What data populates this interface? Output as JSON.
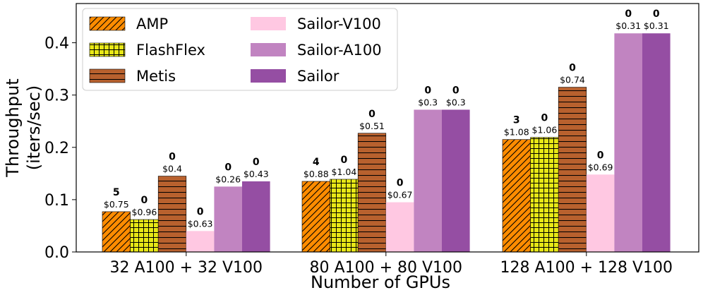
{
  "chart_data": {
    "type": "bar",
    "xlabel": "Number of GPUs",
    "ylabel_lines": [
      "Throughput",
      "(iters/sec)"
    ],
    "ylim": [
      0,
      0.475
    ],
    "yticks": [
      "0.0",
      "0.1",
      "0.2",
      "0.3",
      "0.4"
    ],
    "categories": [
      "32 A100 + 32 V100",
      "80 A100 + 80 V100",
      "128 A100 + 128 V100"
    ],
    "series": [
      {
        "name": "AMP",
        "fill": "#ff8c00",
        "pattern": "diag",
        "values": [
          0.077,
          0.135,
          0.215
        ],
        "counts": [
          "5",
          "4",
          "3"
        ],
        "costs": [
          "$0.75",
          "$0.88",
          "$1.08"
        ]
      },
      {
        "name": "FlashFlex",
        "fill": "#e8e817",
        "pattern": "grid",
        "values": [
          0.062,
          0.139,
          0.219
        ],
        "counts": [
          "0",
          "0",
          "0"
        ],
        "costs": [
          "$0.96",
          "$1.04",
          "$1.06"
        ]
      },
      {
        "name": "Metis",
        "fill": "#b8612e",
        "pattern": "hlines",
        "values": [
          0.145,
          0.227,
          0.315
        ],
        "counts": [
          "0",
          "0",
          "0"
        ],
        "costs": [
          "$0.4",
          "$0.51",
          "$0.74"
        ]
      },
      {
        "name": "Sailor-V100",
        "fill": "#ffc8e2",
        "pattern": "none",
        "values": [
          0.04,
          0.095,
          0.148
        ],
        "counts": [
          "0",
          "0",
          "0"
        ],
        "costs": [
          "$0.63",
          "$0.67",
          "$0.69"
        ]
      },
      {
        "name": "Sailor-A100",
        "fill": "#c184c1",
        "pattern": "none",
        "values": [
          0.125,
          0.272,
          0.418
        ],
        "counts": [
          "0",
          "0",
          "0"
        ],
        "costs": [
          "$0.26",
          "$0.3",
          "$0.31"
        ]
      },
      {
        "name": "Sailor",
        "fill": "#954ea3",
        "pattern": "none",
        "values": [
          0.135,
          0.272,
          0.418
        ],
        "counts": [
          "0",
          "0",
          "0"
        ],
        "costs": [
          "$0.43",
          "$0.3",
          "$0.31"
        ]
      }
    ],
    "legend_position": "top-left",
    "grid": false
  }
}
